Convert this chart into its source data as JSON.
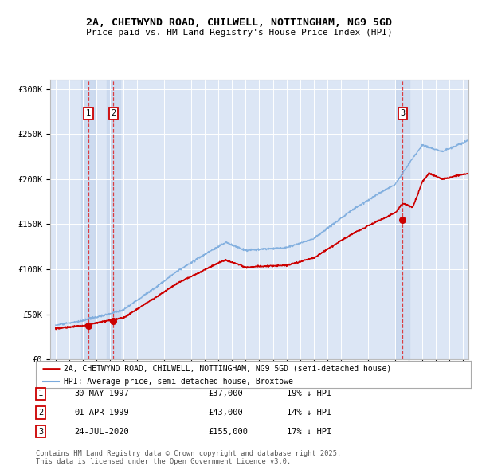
{
  "title_line1": "2A, CHETWYND ROAD, CHILWELL, NOTTINGHAM, NG9 5GD",
  "title_line2": "Price paid vs. HM Land Registry's House Price Index (HPI)",
  "background_color": "#e8eef8",
  "plot_bg_color": "#dce6f5",
  "grid_color": "#ffffff",
  "transactions": [
    {
      "num": 1,
      "date_str": "30-MAY-1997",
      "date_x": 1997.41,
      "price": 37000,
      "pct": "19%"
    },
    {
      "num": 2,
      "date_str": "01-APR-1999",
      "date_x": 1999.25,
      "price": 43000,
      "pct": "14%"
    },
    {
      "num": 3,
      "date_str": "24-JUL-2020",
      "date_x": 2020.56,
      "price": 155000,
      "pct": "17%"
    }
  ],
  "legend_label_red": "2A, CHETWYND ROAD, CHILWELL, NOTTINGHAM, NG9 5GD (semi-detached house)",
  "legend_label_blue": "HPI: Average price, semi-detached house, Broxtowe",
  "footnote": "Contains HM Land Registry data © Crown copyright and database right 2025.\nThis data is licensed under the Open Government Licence v3.0.",
  "ylim": [
    0,
    310000
  ],
  "yticks": [
    0,
    50000,
    100000,
    150000,
    200000,
    250000,
    300000
  ],
  "ytick_labels": [
    "£0",
    "£50K",
    "£100K",
    "£150K",
    "£200K",
    "£250K",
    "£300K"
  ],
  "xlim_start": 1994.6,
  "xlim_end": 2025.4,
  "hpi_color": "#7aaadd",
  "prop_color": "#cc0000",
  "vline_color": "#dd2222",
  "shade_color": "#c8d8ee"
}
